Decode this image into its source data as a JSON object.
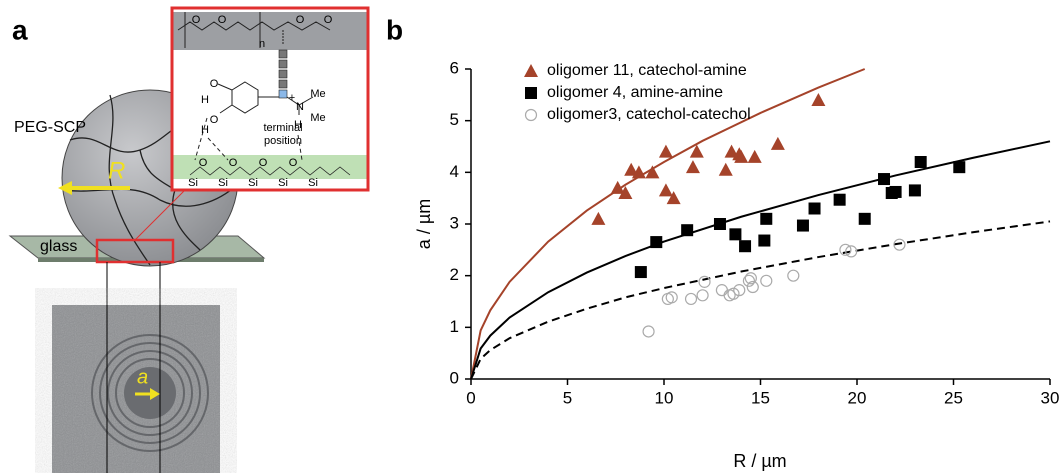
{
  "panel_labels": [
    "a",
    "b"
  ],
  "schematic": {
    "particle_label": "PEG-SCP",
    "radius_label": "R",
    "substrate_label": "glass",
    "contact_label": "a",
    "inset": {
      "annotation": [
        "terminal",
        "position"
      ],
      "atoms": [
        "O",
        "O",
        "n",
        "O",
        "O",
        "H",
        "O",
        "H",
        "O",
        "N",
        "+",
        "Me",
        "Me",
        "H",
        "Si",
        "O",
        "Si",
        "O",
        "Si",
        "O",
        "Si",
        "O",
        "Si"
      ]
    }
  },
  "chart_data": {
    "type": "scatter",
    "x_label": "R / µm",
    "y_label": "a / µm",
    "xlim": [
      0,
      30
    ],
    "ylim": [
      0,
      6
    ],
    "xticks": [
      0,
      5,
      10,
      15,
      20,
      25,
      30
    ],
    "yticks": [
      0,
      1,
      2,
      3,
      4,
      5,
      6
    ],
    "legend": "upper left",
    "series": [
      {
        "name": "oligomer 11, catechol-amine",
        "color": "#a5432a",
        "marker": "triangle",
        "x": [
          6.6,
          7.6,
          8.0,
          8.3,
          8.7,
          9.4,
          10.1,
          10.1,
          10.5,
          11.5,
          11.7,
          13.2,
          13.5,
          13.9,
          14.0,
          14.7,
          15.9,
          18.0
        ],
        "values": [
          3.1,
          3.7,
          3.6,
          4.05,
          4.0,
          4.0,
          4.4,
          3.65,
          3.5,
          4.1,
          4.4,
          4.05,
          4.4,
          4.35,
          4.3,
          4.3,
          4.55,
          5.4
        ]
      },
      {
        "name": "oligomer 4, amine-amine",
        "color": "#000000",
        "marker": "square",
        "x": [
          8.8,
          9.6,
          11.2,
          12.9,
          13.7,
          14.2,
          15.2,
          15.3,
          17.2,
          17.8,
          19.1,
          20.4,
          21.4,
          21.8,
          22.0,
          23.0,
          23.3,
          25.3
        ],
        "values": [
          2.07,
          2.65,
          2.88,
          3.0,
          2.8,
          2.57,
          2.68,
          3.1,
          2.97,
          3.3,
          3.47,
          3.1,
          3.87,
          3.6,
          3.62,
          3.65,
          4.2,
          4.1
        ]
      },
      {
        "name": "oligomer3, catechol-catechol",
        "color": "#aaaaaa",
        "marker": "circle",
        "x": [
          9.2,
          10.2,
          10.4,
          11.4,
          12.0,
          12.1,
          13.0,
          13.4,
          13.6,
          13.9,
          14.4,
          14.5,
          14.6,
          15.3,
          16.7,
          19.4,
          19.7,
          22.2
        ],
        "values": [
          0.92,
          1.55,
          1.58,
          1.55,
          1.62,
          1.88,
          1.72,
          1.62,
          1.65,
          1.72,
          1.9,
          1.95,
          1.78,
          1.9,
          2.0,
          2.5,
          2.47,
          2.6
        ]
      }
    ],
    "fits": [
      {
        "color": "#a5432a",
        "dash": false,
        "x": [
          0,
          0.5,
          1,
          2,
          4,
          6,
          8,
          10,
          12,
          15,
          18,
          20.4
        ],
        "values": [
          0,
          0.94,
          1.33,
          1.88,
          2.66,
          3.26,
          3.76,
          4.2,
          4.61,
          5.15,
          5.64,
          6.0
        ]
      },
      {
        "color": "#000000",
        "dash": false,
        "x": [
          0,
          0.5,
          1,
          2,
          4,
          6,
          8,
          10,
          14,
          18,
          22,
          26,
          30
        ],
        "values": [
          0,
          0.59,
          0.84,
          1.19,
          1.68,
          2.06,
          2.38,
          2.66,
          3.14,
          3.56,
          3.94,
          4.28,
          4.6
        ]
      },
      {
        "color": "#000000",
        "dash": true,
        "x": [
          0,
          0.5,
          1,
          2,
          4,
          6,
          8,
          10,
          14,
          18,
          22,
          26,
          30
        ],
        "values": [
          0,
          0.39,
          0.56,
          0.79,
          1.11,
          1.36,
          1.58,
          1.76,
          2.08,
          2.36,
          2.61,
          2.84,
          3.05
        ]
      }
    ]
  }
}
